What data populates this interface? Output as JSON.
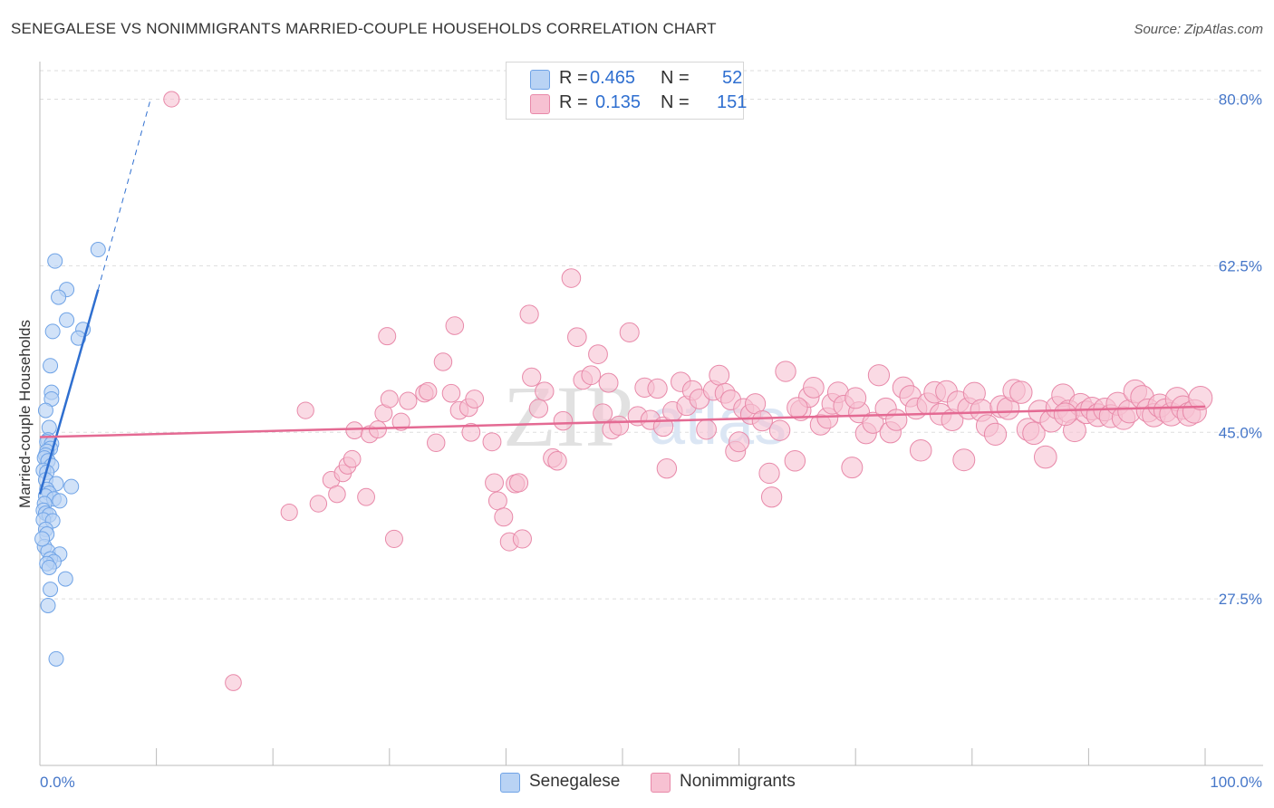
{
  "header": {
    "title": "SENEGALESE VS NONIMMIGRANTS MARRIED-COUPLE HOUSEHOLDS CORRELATION CHART",
    "source": "Source: ZipAtlas.com"
  },
  "legend": {
    "r_label": "R =",
    "n_label": "N =",
    "rows": [
      {
        "name": "Senegalese",
        "r": "0.465",
        "n": "52"
      },
      {
        "name": "Nonimmigrants",
        "r": "0.135",
        "n": "151"
      }
    ]
  },
  "watermark": {
    "part1": "ZIP",
    "part2": "atlas"
  },
  "colors": {
    "blue_fill": "#b9d3f4",
    "blue_stroke": "#6fa3e6",
    "blue_line": "#2f6fd0",
    "pink_fill": "#f7c1d2",
    "pink_stroke": "#e889a9",
    "pink_line": "#e46a93",
    "axis_text": "#4677c9",
    "grid": "#dddddd"
  },
  "chart_data": {
    "type": "scatter",
    "title": "SENEGALESE VS NONIMMIGRANTS MARRIED-COUPLE HOUSEHOLDS CORRELATION CHART",
    "xlabel": "",
    "ylabel": "Married-couple Households",
    "xlim": [
      0,
      100
    ],
    "ylim": [
      10,
      83
    ],
    "x_tick_labels": [
      "0.0%",
      "100.0%"
    ],
    "y_ticks": [
      27.5,
      45.0,
      62.5,
      80.0
    ],
    "y_tick_labels": [
      "27.5%",
      "45.0%",
      "62.5%",
      "80.0%"
    ],
    "legend_position": "top-center",
    "series": [
      {
        "name": "Senegalese",
        "r": 0.465,
        "n": 52,
        "trend": {
          "x0": 0.0,
          "y0": 38.5,
          "x1": 5.0,
          "y1": 60.0,
          "dashed_to_x": 9.5,
          "dashed_to_y": 80.0
        },
        "points": [
          [
            1.3,
            63.0
          ],
          [
            5.0,
            64.2
          ],
          [
            2.3,
            60.0
          ],
          [
            1.6,
            59.2
          ],
          [
            2.3,
            56.8
          ],
          [
            3.7,
            55.8
          ],
          [
            1.1,
            55.6
          ],
          [
            3.3,
            54.9
          ],
          [
            0.9,
            52.0
          ],
          [
            1.0,
            49.2
          ],
          [
            1.0,
            48.5
          ],
          [
            0.5,
            47.3
          ],
          [
            0.8,
            45.5
          ],
          [
            0.7,
            44.2
          ],
          [
            0.6,
            44.0
          ],
          [
            1.0,
            43.8
          ],
          [
            0.9,
            43.3
          ],
          [
            0.6,
            43.0
          ],
          [
            0.5,
            42.6
          ],
          [
            0.4,
            42.3
          ],
          [
            0.7,
            42.0
          ],
          [
            1.0,
            41.5
          ],
          [
            0.3,
            41.0
          ],
          [
            0.6,
            40.8
          ],
          [
            0.5,
            40.0
          ],
          [
            1.4,
            39.6
          ],
          [
            2.7,
            39.3
          ],
          [
            0.6,
            39.0
          ],
          [
            0.8,
            38.6
          ],
          [
            0.5,
            38.3
          ],
          [
            1.2,
            38.0
          ],
          [
            1.7,
            37.8
          ],
          [
            0.4,
            37.5
          ],
          [
            0.3,
            36.8
          ],
          [
            0.5,
            36.5
          ],
          [
            0.8,
            36.3
          ],
          [
            0.3,
            35.8
          ],
          [
            1.1,
            35.7
          ],
          [
            0.5,
            34.8
          ],
          [
            0.6,
            34.3
          ],
          [
            0.4,
            33.0
          ],
          [
            0.7,
            32.5
          ],
          [
            1.7,
            32.2
          ],
          [
            0.9,
            31.7
          ],
          [
            1.2,
            31.4
          ],
          [
            0.6,
            31.2
          ],
          [
            0.8,
            30.8
          ],
          [
            2.2,
            29.6
          ],
          [
            0.9,
            28.5
          ],
          [
            0.7,
            26.8
          ],
          [
            1.4,
            21.2
          ],
          [
            0.2,
            33.8
          ]
        ]
      },
      {
        "name": "Nonimmigrants",
        "r": 0.135,
        "n": 151,
        "trend": {
          "x0": 0.0,
          "y0": 44.5,
          "x1": 100.0,
          "y1": 47.7
        },
        "points": [
          [
            11.3,
            80.0
          ],
          [
            16.6,
            18.7
          ],
          [
            21.4,
            36.6
          ],
          [
            22.8,
            47.3
          ],
          [
            23.9,
            37.5
          ],
          [
            25.0,
            40.0
          ],
          [
            25.5,
            38.5
          ],
          [
            26.0,
            40.7
          ],
          [
            26.4,
            41.5
          ],
          [
            26.8,
            42.2
          ],
          [
            27.0,
            45.2
          ],
          [
            28.0,
            38.2
          ],
          [
            28.3,
            44.8
          ],
          [
            29.0,
            45.3
          ],
          [
            29.5,
            47.0
          ],
          [
            29.8,
            55.1
          ],
          [
            30.0,
            48.5
          ],
          [
            30.4,
            33.8
          ],
          [
            31.0,
            46.1
          ],
          [
            31.6,
            48.3
          ],
          [
            33.0,
            49.1
          ],
          [
            33.3,
            49.3
          ],
          [
            34.0,
            43.9
          ],
          [
            34.6,
            52.4
          ],
          [
            35.3,
            49.1
          ],
          [
            35.6,
            56.2
          ],
          [
            36.0,
            47.3
          ],
          [
            36.8,
            47.6
          ],
          [
            37.0,
            45.0
          ],
          [
            37.3,
            48.5
          ],
          [
            38.8,
            44.0
          ],
          [
            39.0,
            39.7
          ],
          [
            39.3,
            37.8
          ],
          [
            39.8,
            36.1
          ],
          [
            40.3,
            33.5
          ],
          [
            40.8,
            39.6
          ],
          [
            41.1,
            39.7
          ],
          [
            41.4,
            33.8
          ],
          [
            42.0,
            57.4
          ],
          [
            42.2,
            50.8
          ],
          [
            42.8,
            47.5
          ],
          [
            43.3,
            49.3
          ],
          [
            44.0,
            42.3
          ],
          [
            44.4,
            42.0
          ],
          [
            44.9,
            46.2
          ],
          [
            45.6,
            61.2
          ],
          [
            46.1,
            55.0
          ],
          [
            46.6,
            50.5
          ],
          [
            47.3,
            51.0
          ],
          [
            47.9,
            53.2
          ],
          [
            48.3,
            47.0
          ],
          [
            48.8,
            50.2
          ],
          [
            49.1,
            45.3
          ],
          [
            49.7,
            45.7
          ],
          [
            50.6,
            55.5
          ],
          [
            51.3,
            46.7
          ],
          [
            51.9,
            49.7
          ],
          [
            52.4,
            46.3
          ],
          [
            53.0,
            49.6
          ],
          [
            53.5,
            45.6
          ],
          [
            53.8,
            41.2
          ],
          [
            54.3,
            47.2
          ],
          [
            55.0,
            50.3
          ],
          [
            55.5,
            47.8
          ],
          [
            56.0,
            49.4
          ],
          [
            56.6,
            48.5
          ],
          [
            57.2,
            45.3
          ],
          [
            57.8,
            49.4
          ],
          [
            58.3,
            51.0
          ],
          [
            58.8,
            49.1
          ],
          [
            59.3,
            48.4
          ],
          [
            59.7,
            43.0
          ],
          [
            60.0,
            44.0
          ],
          [
            60.4,
            47.5
          ],
          [
            61.0,
            46.9
          ],
          [
            61.4,
            48.0
          ],
          [
            62.0,
            46.2
          ],
          [
            62.6,
            40.7
          ],
          [
            62.8,
            38.2
          ],
          [
            63.5,
            45.2
          ],
          [
            64.0,
            51.4
          ],
          [
            64.8,
            42.0
          ],
          [
            65.3,
            47.3
          ],
          [
            66.0,
            48.7
          ],
          [
            66.4,
            49.7
          ],
          [
            67.0,
            45.8
          ],
          [
            67.6,
            46.5
          ],
          [
            68.0,
            48.0
          ],
          [
            68.5,
            49.2
          ],
          [
            69.0,
            47.8
          ],
          [
            69.7,
            41.3
          ],
          [
            70.3,
            47.1
          ],
          [
            70.9,
            44.9
          ],
          [
            71.5,
            46.0
          ],
          [
            72.0,
            51.0
          ],
          [
            72.6,
            47.5
          ],
          [
            73.0,
            45.0
          ],
          [
            73.5,
            46.3
          ],
          [
            74.1,
            49.7
          ],
          [
            74.7,
            48.8
          ],
          [
            75.2,
            47.5
          ],
          [
            75.6,
            43.1
          ],
          [
            76.2,
            48.0
          ],
          [
            76.8,
            49.2
          ],
          [
            77.3,
            46.9
          ],
          [
            77.8,
            49.3
          ],
          [
            78.3,
            46.3
          ],
          [
            78.8,
            48.2
          ],
          [
            79.3,
            42.1
          ],
          [
            79.7,
            47.5
          ],
          [
            80.2,
            49.1
          ],
          [
            80.8,
            47.3
          ],
          [
            81.3,
            45.7
          ],
          [
            82.0,
            44.8
          ],
          [
            82.5,
            47.7
          ],
          [
            83.1,
            47.5
          ],
          [
            83.6,
            49.4
          ],
          [
            84.2,
            49.2
          ],
          [
            84.8,
            45.3
          ],
          [
            85.3,
            44.9
          ],
          [
            85.8,
            47.2
          ],
          [
            86.3,
            42.4
          ],
          [
            86.8,
            46.2
          ],
          [
            87.3,
            47.6
          ],
          [
            87.8,
            48.9
          ],
          [
            88.3,
            47.2
          ],
          [
            88.8,
            45.2
          ],
          [
            89.3,
            47.9
          ],
          [
            89.8,
            47.1
          ],
          [
            90.3,
            47.5
          ],
          [
            90.8,
            46.8
          ],
          [
            91.4,
            47.4
          ],
          [
            91.9,
            46.7
          ],
          [
            92.5,
            48.0
          ],
          [
            93.0,
            46.5
          ],
          [
            93.5,
            47.2
          ],
          [
            94.0,
            49.3
          ],
          [
            94.6,
            48.7
          ],
          [
            95.1,
            47.3
          ],
          [
            95.6,
            46.8
          ],
          [
            96.1,
            47.8
          ],
          [
            96.6,
            47.3
          ],
          [
            97.1,
            46.9
          ],
          [
            97.6,
            48.5
          ],
          [
            98.1,
            47.6
          ],
          [
            98.6,
            46.9
          ],
          [
            99.1,
            47.2
          ],
          [
            99.6,
            48.6
          ],
          [
            65.0,
            47.6
          ],
          [
            70.0,
            48.6
          ],
          [
            88.0,
            46.9
          ]
        ]
      }
    ]
  }
}
